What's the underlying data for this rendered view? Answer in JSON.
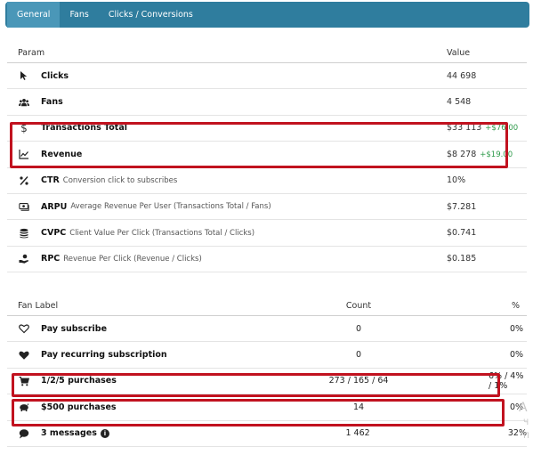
{
  "tabs": [
    {
      "label": "General"
    },
    {
      "label": "Fans"
    },
    {
      "label": "Clicks / Conversions"
    }
  ],
  "params": {
    "header": {
      "param": "Param",
      "value": "Value"
    },
    "rows": [
      {
        "icon": "cursor-icon",
        "label": "Clicks",
        "desc": "",
        "value": "44 698",
        "delta": ""
      },
      {
        "icon": "users-icon",
        "label": "Fans",
        "desc": "",
        "value": "4 548",
        "delta": ""
      },
      {
        "icon": "dollar-icon",
        "label": "Transactions Total",
        "desc": "",
        "value": "$33 113",
        "delta": "+$76.00"
      },
      {
        "icon": "line-chart-icon",
        "label": "Revenue",
        "desc": "",
        "value": "$8 278",
        "delta": "+$19.00"
      },
      {
        "icon": "percent-icon",
        "label": "CTR",
        "desc": "Conversion click to subscribes",
        "value": "10%",
        "delta": ""
      },
      {
        "icon": "money-bill-icon",
        "label": "ARPU",
        "desc": "Average Revenue Per User (Transactions Total / Fans)",
        "value": "$7.281",
        "delta": ""
      },
      {
        "icon": "coins-icon",
        "label": "CVPC",
        "desc": "Client Value Per Click (Transactions Total / Clicks)",
        "value": "$0.741",
        "delta": ""
      },
      {
        "icon": "hand-coin-icon",
        "label": "RPC",
        "desc": "Revenue Per Click (Revenue / Clicks)",
        "value": "$0.185",
        "delta": ""
      }
    ]
  },
  "fans": {
    "header": {
      "label": "Fan Label",
      "count": "Count",
      "pct": "%"
    },
    "rows": [
      {
        "icon": "heart-outline-icon",
        "label": "Pay subscribe",
        "count": "0",
        "pct": "0%"
      },
      {
        "icon": "heart-solid-icon",
        "label": "Pay recurring subscription",
        "count": "0",
        "pct": "0%"
      },
      {
        "icon": "cart-icon",
        "label": "1/2/5 purchases",
        "count": "273 / 165 / 64",
        "pct": "6% / 4% / 1%"
      },
      {
        "icon": "piggy-bank-icon",
        "label": "$500 purchases",
        "count": "14",
        "pct": "0%"
      },
      {
        "icon": "comment-icon",
        "label": "3 messages",
        "count": "1 462",
        "pct": "32%"
      }
    ]
  },
  "ghost_text": {
    "a": "A",
    "b": "Ч",
    "c": "\"П"
  }
}
